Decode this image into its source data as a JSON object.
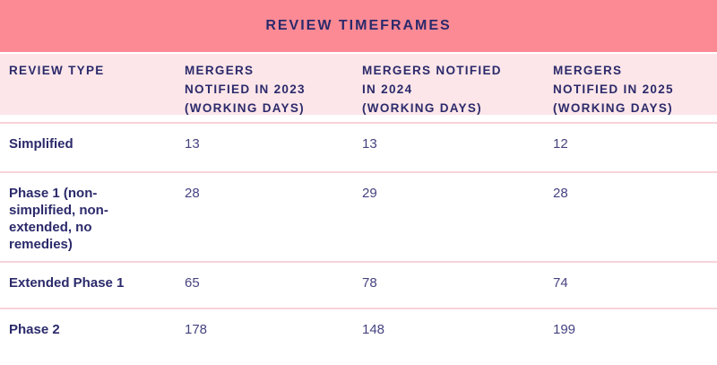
{
  "title": "REVIEW TIMEFRAMES",
  "display": {
    "header": [
      "REVIEW TYPE",
      "MERGERS\nNOTIFIED IN 2023\n(WORKING DAYS)",
      "MERGERS NOTIFIED\nIN 2024\n(WORKING DAYS)",
      "MERGERS\nNOTIFIED IN 2025\n(WORKING DAYS)"
    ],
    "rows": [
      {
        "type": "Simplified",
        "values": [
          "13",
          "13",
          "12"
        ]
      },
      {
        "type": "Phase 1 (non-\nsimplified, non-\nextended, no\nremedies)",
        "values": [
          "28",
          "29",
          "28"
        ]
      },
      {
        "type": "Extended Phase 1",
        "values": [
          "65",
          "78",
          "74"
        ]
      },
      {
        "type": "Phase 2",
        "values": [
          "178",
          "148",
          "199"
        ]
      }
    ]
  },
  "chart_data": {
    "type": "table",
    "title": "REVIEW TIMEFRAMES",
    "columns": [
      "REVIEW TYPE",
      "MERGERS NOTIFIED IN 2023 (WORKING DAYS)",
      "MERGERS NOTIFIED IN 2024 (WORKING DAYS)",
      "MERGERS NOTIFIED IN 2025 (WORKING DAYS)"
    ],
    "rows": [
      [
        "Simplified",
        13,
        13,
        12
      ],
      [
        "Phase 1 (non-simplified, non-extended, no remedies)",
        28,
        29,
        28
      ],
      [
        "Extended Phase 1",
        65,
        78,
        74
      ],
      [
        "Phase 2",
        178,
        148,
        199
      ]
    ]
  },
  "colors": {
    "title_bar_bg": "#FC8A94",
    "header_row_bg": "#FDE6E9",
    "row_separator": "#F7D3D9",
    "heading_text": "#2B2A6B",
    "value_text": "#454380",
    "background": "#FFFFFF"
  }
}
